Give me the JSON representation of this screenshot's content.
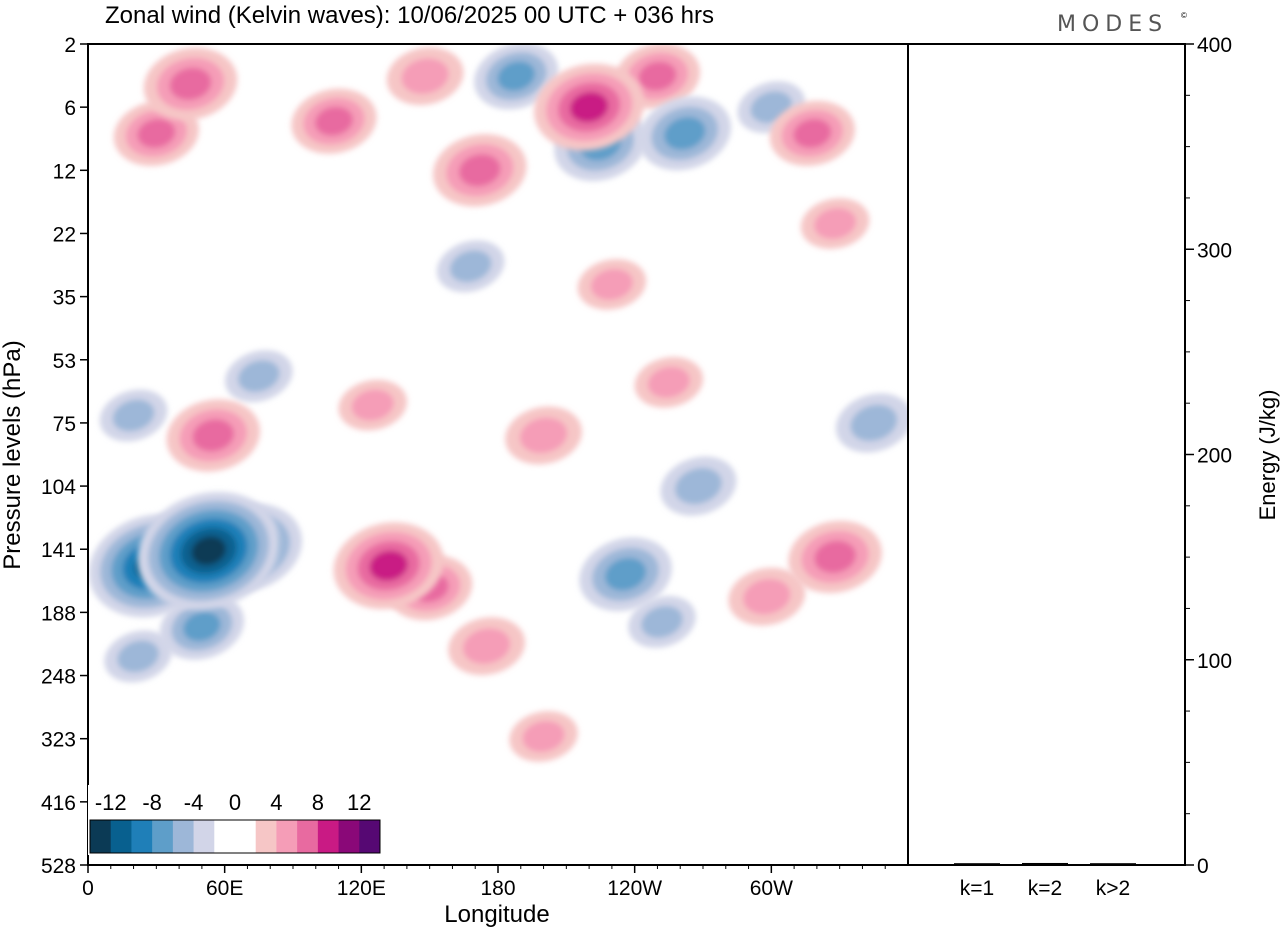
{
  "chart_data": {
    "type": "heatmap",
    "title": "Zonal wind (Kelvin waves):  10/06/2025  00 UTC  + 036 hrs",
    "brand": "MODES",
    "brand_mark": "©",
    "xlabel": "Longitude",
    "ylabel": "Pressure levels (hPa)",
    "x_ticks": [
      "0",
      "60E",
      "120E",
      "180",
      "120W",
      "60W"
    ],
    "y_ticks": [
      "2",
      "6",
      "12",
      "22",
      "35",
      "53",
      "75",
      "104",
      "141",
      "188",
      "248",
      "323",
      "416",
      "528"
    ],
    "colorbar": {
      "labels": [
        "-12",
        "-8",
        "-4",
        "0",
        "4",
        "8",
        "12"
      ],
      "colors": [
        "#0b3a55",
        "#08608f",
        "#1f7fb8",
        "#5e9ec9",
        "#9db7d8",
        "#d2d5e8",
        "#ffffff",
        "#ffffff",
        "#f6c6c6",
        "#f59db7",
        "#e86aa0",
        "#c91a84",
        "#8a0878",
        "#560873"
      ]
    },
    "energy_panel": {
      "ylabel": "Energy (J/kg)",
      "ylim": [
        0,
        400
      ],
      "y_ticks": [
        "0",
        "100",
        "200",
        "300",
        "400"
      ],
      "categories": [
        "k=1",
        "k=2",
        "k>2"
      ],
      "values": [
        0.4,
        0.5,
        0.4
      ]
    },
    "anomalies": [
      {
        "lon": 28,
        "level": 152,
        "value": -10
      },
      {
        "lon": 53,
        "level": 142,
        "value": -12
      },
      {
        "lon": 70,
        "level": 140,
        "value": -8
      },
      {
        "lon": 22,
        "level": 228,
        "value": -3
      },
      {
        "lon": 50,
        "level": 200,
        "value": -5
      },
      {
        "lon": 132,
        "level": 152,
        "value": 8
      },
      {
        "lon": 150,
        "level": 168,
        "value": 5
      },
      {
        "lon": 175,
        "level": 218,
        "value": 4
      },
      {
        "lon": 200,
        "level": 320,
        "value": 3
      },
      {
        "lon": 236,
        "level": 158,
        "value": -6
      },
      {
        "lon": 252,
        "level": 196,
        "value": -3
      },
      {
        "lon": 268,
        "level": 104,
        "value": -4
      },
      {
        "lon": 328,
        "level": 146,
        "value": 6
      },
      {
        "lon": 298,
        "level": 175,
        "value": 4
      },
      {
        "lon": 345,
        "level": 75,
        "value": -4
      },
      {
        "lon": 55,
        "level": 80,
        "value": 6
      },
      {
        "lon": 20,
        "level": 72,
        "value": -3
      },
      {
        "lon": 75,
        "level": 58,
        "value": -3
      },
      {
        "lon": 125,
        "level": 68,
        "value": 3
      },
      {
        "lon": 200,
        "level": 80,
        "value": 4
      },
      {
        "lon": 255,
        "level": 60,
        "value": 3
      },
      {
        "lon": 168,
        "level": 28,
        "value": -3
      },
      {
        "lon": 230,
        "level": 32,
        "value": 3
      },
      {
        "lon": 328,
        "level": 20,
        "value": 3
      },
      {
        "lon": 172,
        "level": 12,
        "value": 6
      },
      {
        "lon": 225,
        "level": 9,
        "value": -6
      },
      {
        "lon": 262,
        "level": 8,
        "value": -6
      },
      {
        "lon": 220,
        "level": 6,
        "value": 8
      },
      {
        "lon": 188,
        "level": 3.5,
        "value": -5
      },
      {
        "lon": 250,
        "level": 3.5,
        "value": 5
      },
      {
        "lon": 45,
        "level": 4,
        "value": 6
      },
      {
        "lon": 108,
        "level": 7,
        "value": 5
      },
      {
        "lon": 148,
        "level": 3.5,
        "value": 4
      },
      {
        "lon": 318,
        "level": 8,
        "value": 5
      },
      {
        "lon": 300,
        "level": 6,
        "value": -3
      },
      {
        "lon": 30,
        "level": 8,
        "value": 5
      }
    ]
  }
}
